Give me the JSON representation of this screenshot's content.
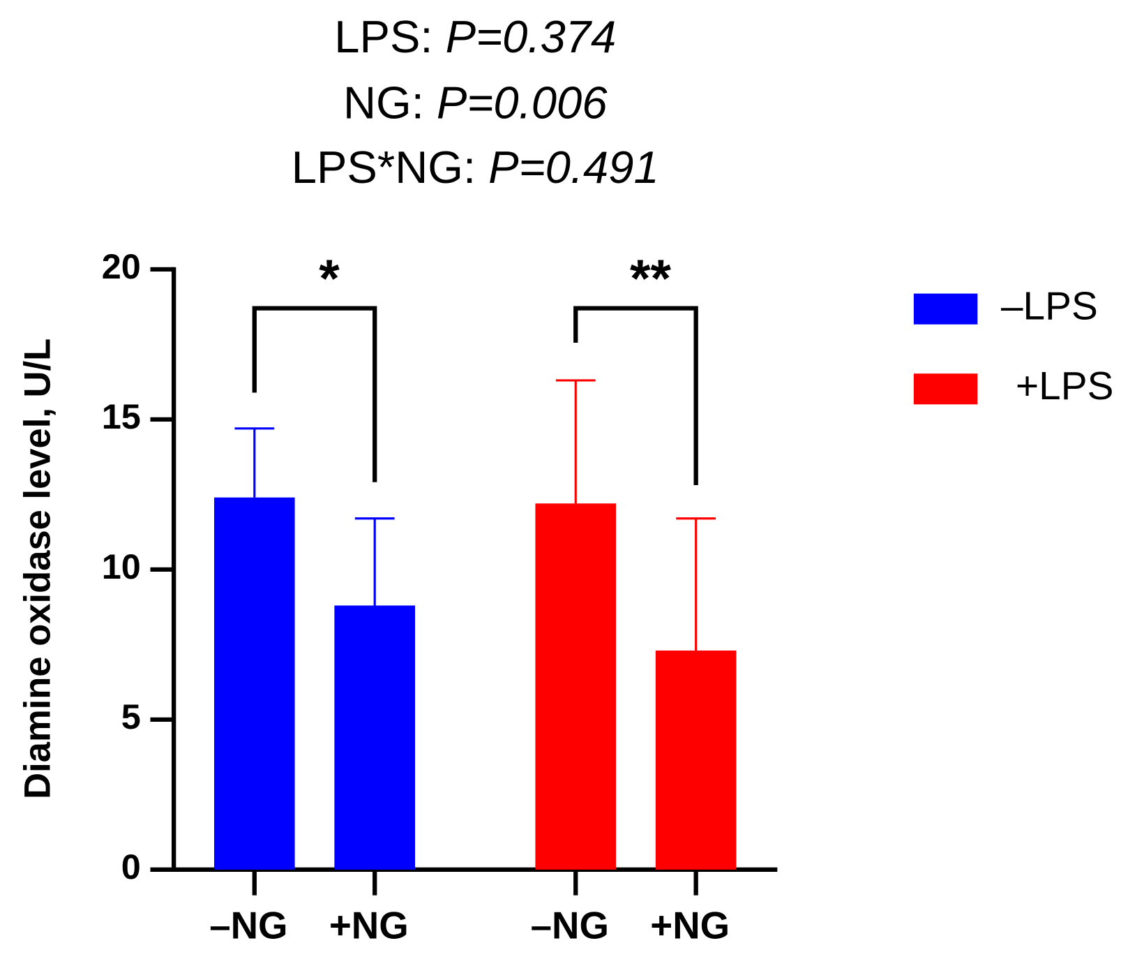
{
  "chart_data": {
    "type": "bar",
    "title_lines": [
      {
        "label": "LPS:",
        "p": "P=0.374"
      },
      {
        "label": "NG:",
        "p": "P=0.006"
      },
      {
        "label": "LPS*NG:",
        "p": "P=0.491"
      }
    ],
    "ylabel": "Diamine oxidase level, U/L",
    "categories": [
      "–NG",
      "+NG"
    ],
    "series": [
      {
        "name": "–LPS",
        "color": "#0000ff",
        "values": [
          12.4,
          8.8
        ],
        "errors": [
          2.3,
          2.9
        ]
      },
      {
        "name": "+LPS",
        "color": "#ff0000",
        "values": [
          12.2,
          7.3
        ],
        "errors": [
          4.1,
          4.4
        ]
      }
    ],
    "significance": [
      "*",
      "**"
    ],
    "ylim": [
      0,
      20
    ],
    "yticks": [
      0,
      5,
      10,
      15,
      20
    ]
  }
}
